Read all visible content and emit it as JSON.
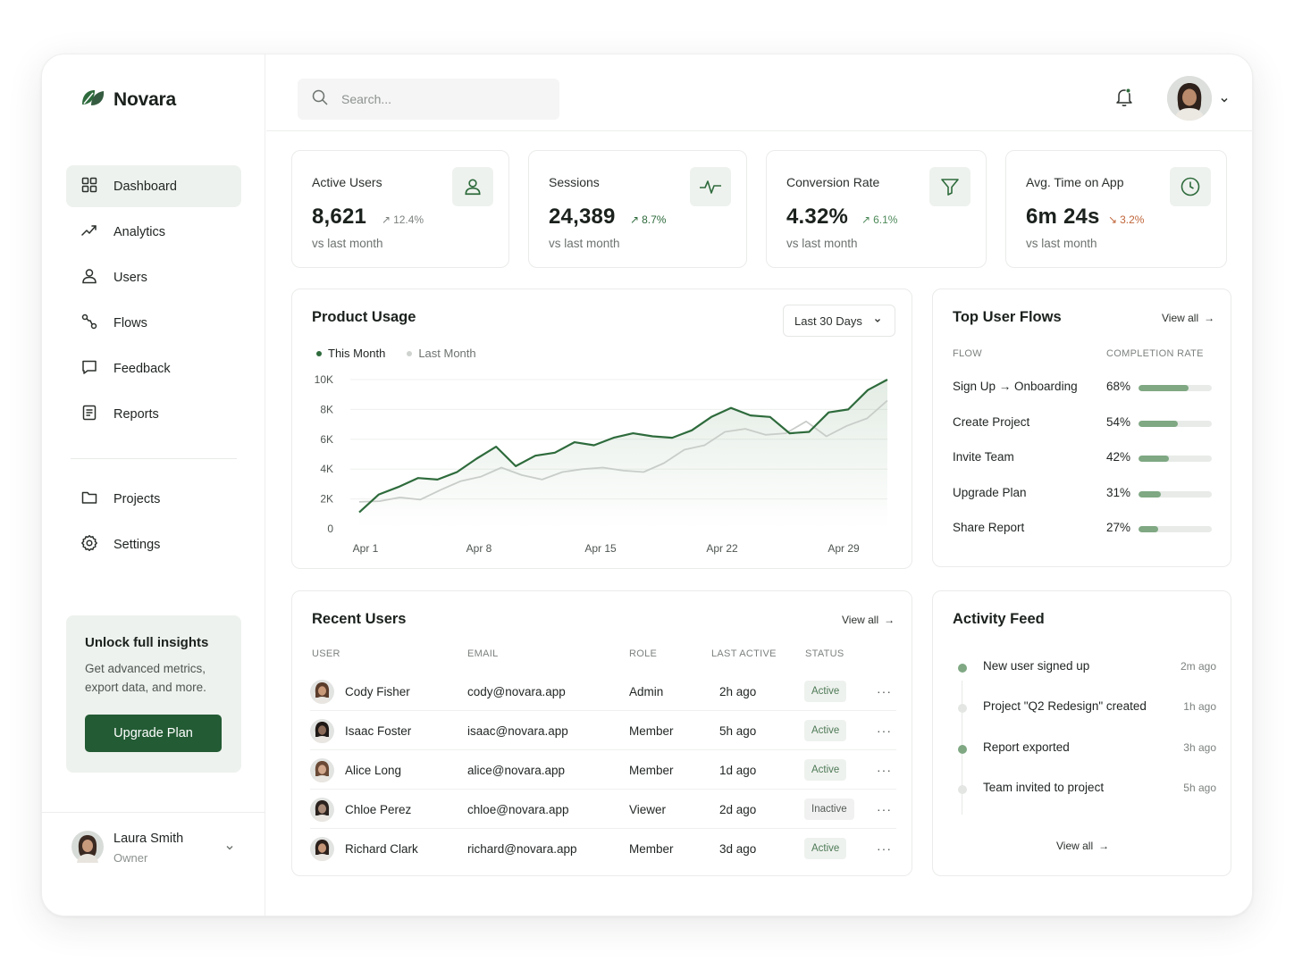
{
  "brand": {
    "name": "Novara"
  },
  "nav": {
    "items": [
      {
        "label": "Dashboard",
        "icon": "dashboard-icon",
        "active": true
      },
      {
        "label": "Analytics",
        "icon": "analytics-icon"
      },
      {
        "label": "Users",
        "icon": "user-icon"
      },
      {
        "label": "Flows",
        "icon": "flows-icon"
      },
      {
        "label": "Feedback",
        "icon": "feedback-icon"
      },
      {
        "label": "Reports",
        "icon": "reports-icon"
      }
    ],
    "secondary": [
      {
        "label": "Projects",
        "icon": "folder-icon"
      },
      {
        "label": "Settings",
        "icon": "gear-icon"
      }
    ]
  },
  "promo": {
    "title": "Unlock full insights",
    "text": "Get advanced metrics, export data, and more.",
    "button": "Upgrade Plan"
  },
  "current_user": {
    "name": "Laura Smith",
    "role": "Owner"
  },
  "search": {
    "placeholder": "Search..."
  },
  "kpis": [
    {
      "label": "Active Users",
      "value": "8,621",
      "change": "12.4%",
      "direction": "up",
      "sub": "vs last month",
      "icon": "user-icon"
    },
    {
      "label": "Sessions",
      "value": "24,389",
      "change": "8.7%",
      "direction": "up",
      "sub": "vs last month",
      "icon": "pulse-icon"
    },
    {
      "label": "Conversion Rate",
      "value": "4.32%",
      "change": "6.1%",
      "direction": "up",
      "sub": "vs last month",
      "icon": "funnel-icon"
    },
    {
      "label": "Avg. Time on App",
      "value": "6m 24s",
      "change": "3.2%",
      "direction": "down",
      "sub": "vs last month",
      "icon": "clock-icon"
    }
  ],
  "usage": {
    "title": "Product Usage",
    "range": "Last 30 Days",
    "legend": {
      "this": "This Month",
      "last": "Last Month"
    }
  },
  "chart_data": {
    "type": "line",
    "title": "Product Usage",
    "x_ticks": [
      "Apr 1",
      "Apr 8",
      "Apr 15",
      "Apr 22",
      "Apr 29"
    ],
    "y_ticks": [
      "10K",
      "8K",
      "6K",
      "4K",
      "2K",
      "0"
    ],
    "ylim": [
      0,
      10000
    ],
    "x_start": "Apr 1",
    "x_end": "Apr 30",
    "series": [
      {
        "name": "This Month",
        "color": "#2e6b3c",
        "values": [
          1100,
          2300,
          2800,
          3400,
          3300,
          3800,
          4700,
          5500,
          4200,
          4900,
          5100,
          5800,
          5600,
          6100,
          6400,
          6200,
          6100,
          6600,
          7500,
          8100,
          7600,
          7500,
          6400,
          6500,
          7800,
          8000,
          9300,
          10000
        ]
      },
      {
        "name": "Last Month",
        "color": "#c9cdc9",
        "values": [
          1800,
          1850,
          2100,
          1950,
          2600,
          3200,
          3500,
          4100,
          3600,
          3300,
          3800,
          4000,
          4100,
          3900,
          3800,
          4400,
          5300,
          5600,
          6500,
          6700,
          6300,
          6400,
          7200,
          6200,
          6900,
          7400,
          8600
        ]
      }
    ]
  },
  "flows": {
    "title": "Top User Flows",
    "view_all": "View all",
    "col_flow": "FLOW",
    "col_rate": "COMPLETION RATE",
    "rows": [
      {
        "name": "Sign Up → Onboarding",
        "pct": "68%",
        "value": 0.68
      },
      {
        "name": "Create Project",
        "pct": "54%",
        "value": 0.54
      },
      {
        "name": "Invite Team",
        "pct": "42%",
        "value": 0.42
      },
      {
        "name": "Upgrade Plan",
        "pct": "31%",
        "value": 0.31
      },
      {
        "name": "Share Report",
        "pct": "27%",
        "value": 0.27
      }
    ]
  },
  "recent_users": {
    "title": "Recent Users",
    "view_all": "View all",
    "columns": [
      "USER",
      "EMAIL",
      "ROLE",
      "LAST ACTIVE",
      "STATUS"
    ],
    "rows": [
      {
        "name": "Cody Fisher",
        "email": "cody@novara.app",
        "role": "Admin",
        "last": "2h ago",
        "status": "Active"
      },
      {
        "name": "Isaac Foster",
        "email": "isaac@novara.app",
        "role": "Member",
        "last": "5h ago",
        "status": "Active"
      },
      {
        "name": "Alice Long",
        "email": "alice@novara.app",
        "role": "Member",
        "last": "1d ago",
        "status": "Active"
      },
      {
        "name": "Chloe Perez",
        "email": "chloe@novara.app",
        "role": "Viewer",
        "last": "2d ago",
        "status": "Inactive"
      },
      {
        "name": "Richard Clark",
        "email": "richard@novara.app",
        "role": "Member",
        "last": "3d ago",
        "status": "Active"
      }
    ]
  },
  "activity": {
    "title": "Activity Feed",
    "view_all": "View all",
    "items": [
      {
        "text": "New user signed up",
        "time": "2m ago",
        "accent": true
      },
      {
        "text": "Project \"Q2 Redesign\" created",
        "time": "1h ago",
        "accent": false
      },
      {
        "text": "Report exported",
        "time": "3h ago",
        "accent": true
      },
      {
        "text": "Team invited to project",
        "time": "5h ago",
        "accent": false
      }
    ]
  },
  "colors": {
    "accent": "#235b34",
    "accent_light": "#eef2ee",
    "up": "#4e8a5a",
    "down": "#c0663a"
  }
}
